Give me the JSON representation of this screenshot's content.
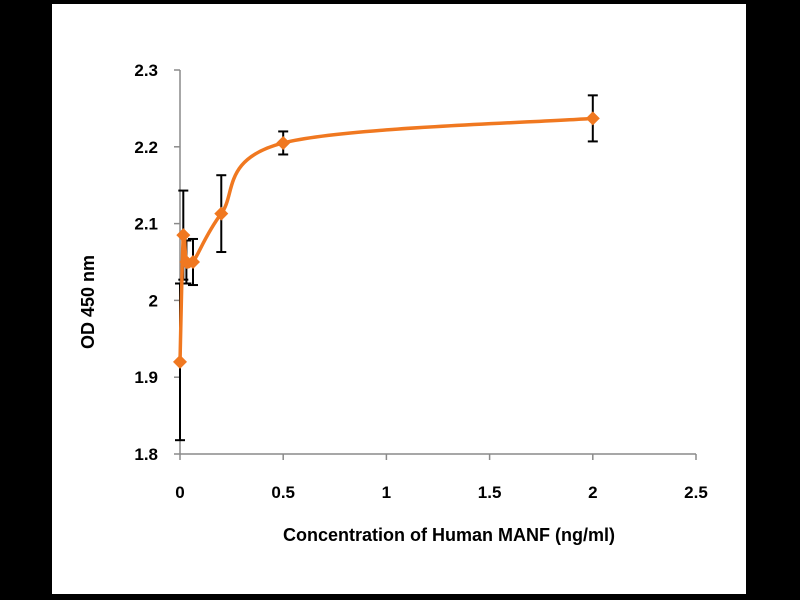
{
  "colors": {
    "background": "#000000",
    "panel": "#ffffff",
    "series": "#f07820",
    "axis": "#000000",
    "error_bar": "#000000"
  },
  "chart_data": {
    "type": "scatter",
    "title": "",
    "xlabel": "Concentration of Human MANF (ng/ml)",
    "ylabel": "OD 450 nm",
    "xlim": [
      0,
      2.5
    ],
    "ylim": [
      1.8,
      2.3
    ],
    "xticks": [
      0,
      0.5,
      1,
      1.5,
      2,
      2.5
    ],
    "yticks": [
      1.8,
      1.9,
      2.0,
      2.1,
      2.2,
      2.3
    ],
    "xtick_labels": [
      "0",
      "0.5",
      "1",
      "1.5",
      "2",
      "2.5"
    ],
    "ytick_labels": [
      "1.8",
      "1.9",
      "2",
      "2.1",
      "2.2",
      "2.3"
    ],
    "grid": false,
    "marker": "diamond",
    "smooth_line": true,
    "series": [
      {
        "name": "OD 450 nm",
        "x": [
          0,
          0.016,
          0.031,
          0.063,
          0.2,
          0.5,
          2
        ],
        "y": [
          1.92,
          2.085,
          2.05,
          2.05,
          2.113,
          2.205,
          2.237
        ],
        "error": [
          0.102,
          0.058,
          0.028,
          0.03,
          0.05,
          0.015,
          0.03
        ]
      }
    ]
  }
}
